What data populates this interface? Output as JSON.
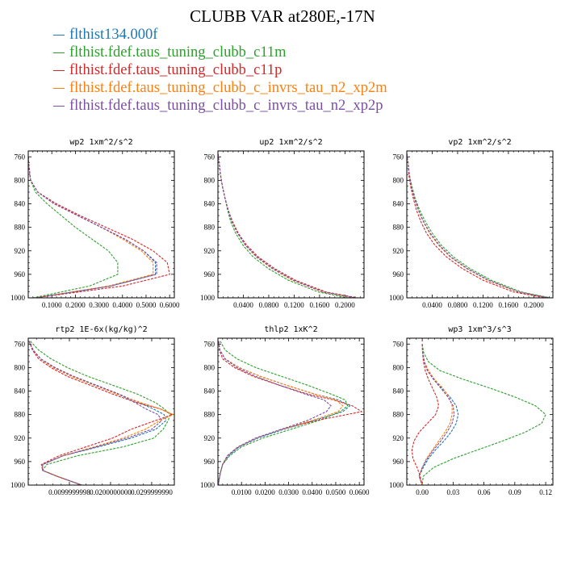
{
  "title": "CLUBB VAR at280E,-17N",
  "legend": [
    {
      "name": "flthist134.000f",
      "color": "#1f77b4"
    },
    {
      "name": "flthist.fdef.taus_tuning_clubb_c11m",
      "color": "#2ca02c"
    },
    {
      "name": "flthist.fdef.taus_tuning_clubb_c11p",
      "color": "#d62728"
    },
    {
      "name": "flthist.fdef.taus_tuning_clubb_c_invrs_tau_n2_xp2m",
      "color": "#ff7f0e"
    },
    {
      "name": "flthist.fdef.taus_tuning_clubb_c_invrs_tau_n2_xp2p",
      "color": "#7b4ea3"
    }
  ],
  "chart_data": [
    {
      "type": "line",
      "title": "wp2  1xm^2/s^2",
      "xlim": [
        0,
        0.62
      ],
      "ylim": [
        1000,
        750
      ],
      "y_reversed": true,
      "xticks": [
        0.1,
        0.2,
        0.3,
        0.4,
        0.5,
        0.6
      ],
      "xtick_labels": [
        "0.1000",
        "0.2000",
        "0.3000",
        "0.4000",
        "0.5000",
        "0.6000"
      ],
      "yticks": [
        760,
        800,
        840,
        880,
        920,
        960,
        1000
      ],
      "ytick_labels": [
        "760",
        "800",
        "840",
        "880",
        "920",
        "960",
        "1000"
      ],
      "y": [
        760,
        780,
        800,
        820,
        840,
        860,
        880,
        900,
        920,
        940,
        960,
        980,
        1000
      ],
      "series": [
        {
          "name": "flthist134.000f",
          "x": [
            0.0,
            0.004,
            0.01,
            0.04,
            0.11,
            0.21,
            0.31,
            0.41,
            0.49,
            0.54,
            0.54,
            0.35,
            0.03
          ]
        },
        {
          "name": "flthist.fdef.taus_tuning_clubb_c11m",
          "x": [
            0.0,
            0.004,
            0.01,
            0.03,
            0.08,
            0.14,
            0.2,
            0.27,
            0.34,
            0.38,
            0.38,
            0.26,
            0.02
          ]
        },
        {
          "name": "flthist.fdef.taus_tuning_clubb_c11p",
          "x": [
            0.0,
            0.004,
            0.01,
            0.04,
            0.12,
            0.22,
            0.33,
            0.44,
            0.53,
            0.59,
            0.6,
            0.4,
            0.03
          ]
        },
        {
          "name": "flthist.fdef.taus_tuning_clubb_c_invrs_tau_n2_xp2m",
          "x": [
            0.0,
            0.004,
            0.01,
            0.04,
            0.11,
            0.21,
            0.31,
            0.4,
            0.48,
            0.53,
            0.53,
            0.34,
            0.03
          ]
        },
        {
          "name": "flthist.fdef.taus_tuning_clubb_c_invrs_tau_n2_xp2p",
          "x": [
            0.0,
            0.004,
            0.01,
            0.04,
            0.11,
            0.21,
            0.31,
            0.41,
            0.49,
            0.545,
            0.545,
            0.35,
            0.03
          ]
        }
      ]
    },
    {
      "type": "line",
      "title": "up2  1xm^2/s^2",
      "xlim": [
        0,
        0.23
      ],
      "ylim": [
        1000,
        750
      ],
      "y_reversed": true,
      "xticks": [
        0.04,
        0.08,
        0.12,
        0.16,
        0.2
      ],
      "xtick_labels": [
        "0.0400",
        "0.0800",
        "0.1200",
        "0.1600",
        "0.2000"
      ],
      "yticks": [
        760,
        800,
        840,
        880,
        920,
        960,
        1000
      ],
      "ytick_labels": [
        "760",
        "800",
        "840",
        "880",
        "920",
        "960",
        "1000"
      ],
      "y": [
        755,
        770,
        790,
        810,
        830,
        850,
        870,
        890,
        910,
        930,
        950,
        970,
        990,
        1000
      ],
      "series": [
        {
          "name": "flthist134.000f",
          "x": [
            0.0,
            0.002,
            0.004,
            0.007,
            0.011,
            0.016,
            0.022,
            0.031,
            0.043,
            0.06,
            0.085,
            0.118,
            0.165,
            0.215
          ]
        },
        {
          "name": "flthist.fdef.taus_tuning_clubb_c11m",
          "x": [
            0.0,
            0.002,
            0.004,
            0.007,
            0.011,
            0.015,
            0.02,
            0.028,
            0.039,
            0.055,
            0.079,
            0.111,
            0.158,
            0.205
          ]
        },
        {
          "name": "flthist.fdef.taus_tuning_clubb_c11p",
          "x": [
            0.0,
            0.002,
            0.004,
            0.007,
            0.011,
            0.016,
            0.023,
            0.032,
            0.045,
            0.063,
            0.089,
            0.122,
            0.17,
            0.22
          ]
        },
        {
          "name": "flthist.fdef.taus_tuning_clubb_c_invrs_tau_n2_xp2m",
          "x": [
            0.0,
            0.002,
            0.004,
            0.007,
            0.011,
            0.016,
            0.022,
            0.031,
            0.043,
            0.06,
            0.085,
            0.117,
            0.165,
            0.214
          ]
        },
        {
          "name": "flthist.fdef.taus_tuning_clubb_c_invrs_tau_n2_xp2p",
          "x": [
            0.0,
            0.002,
            0.004,
            0.007,
            0.011,
            0.016,
            0.022,
            0.031,
            0.043,
            0.061,
            0.086,
            0.119,
            0.166,
            0.216
          ]
        }
      ]
    },
    {
      "type": "line",
      "title": "vp2  1xm^2/s^2",
      "xlim": [
        0,
        0.23
      ],
      "ylim": [
        1000,
        750
      ],
      "y_reversed": true,
      "xticks": [
        0.04,
        0.08,
        0.12,
        0.16,
        0.2
      ],
      "xtick_labels": [
        "0.0400",
        "0.0800",
        "0.1200",
        "0.1600",
        "0.2000"
      ],
      "yticks": [
        760,
        800,
        840,
        880,
        920,
        960,
        1000
      ],
      "ytick_labels": [
        "760",
        "800",
        "840",
        "880",
        "920",
        "960",
        "1000"
      ],
      "y": [
        755,
        770,
        790,
        810,
        830,
        850,
        870,
        890,
        910,
        930,
        950,
        970,
        990,
        1000
      ],
      "series": [
        {
          "name": "flthist134.000f",
          "x": [
            0.0,
            0.002,
            0.004,
            0.007,
            0.012,
            0.018,
            0.026,
            0.036,
            0.05,
            0.068,
            0.094,
            0.128,
            0.175,
            0.223
          ]
        },
        {
          "name": "flthist.fdef.taus_tuning_clubb_c11m",
          "x": [
            0.0,
            0.002,
            0.004,
            0.008,
            0.013,
            0.02,
            0.029,
            0.04,
            0.054,
            0.073,
            0.099,
            0.133,
            0.18,
            0.226
          ]
        },
        {
          "name": "flthist.fdef.taus_tuning_clubb_c11p",
          "x": [
            0.0,
            0.002,
            0.003,
            0.006,
            0.01,
            0.015,
            0.022,
            0.031,
            0.044,
            0.062,
            0.087,
            0.12,
            0.168,
            0.218
          ]
        },
        {
          "name": "flthist.fdef.taus_tuning_clubb_c_invrs_tau_n2_xp2m",
          "x": [
            0.0,
            0.002,
            0.004,
            0.007,
            0.012,
            0.018,
            0.026,
            0.036,
            0.05,
            0.068,
            0.094,
            0.127,
            0.175,
            0.222
          ]
        },
        {
          "name": "flthist.fdef.taus_tuning_clubb_c_invrs_tau_n2_xp2p",
          "x": [
            0.0,
            0.002,
            0.004,
            0.007,
            0.012,
            0.018,
            0.026,
            0.037,
            0.051,
            0.069,
            0.095,
            0.129,
            0.176,
            0.224
          ]
        }
      ]
    },
    {
      "type": "line",
      "title": "rtp2  1E-6x(kg/kg)^2",
      "xlim": [
        0,
        0.0355
      ],
      "ylim": [
        1000,
        750
      ],
      "y_reversed": true,
      "xticks": [
        0.01,
        0.02,
        0.03
      ],
      "xtick_labels": [
        "0.0099999998",
        "0.0200000000",
        "0.0299999990"
      ],
      "yticks": [
        760,
        800,
        840,
        880,
        920,
        960,
        1000
      ],
      "ytick_labels": [
        "760",
        "800",
        "840",
        "880",
        "920",
        "960",
        "1000"
      ],
      "y": [
        755,
        770,
        785,
        800,
        815,
        830,
        845,
        860,
        870,
        880,
        890,
        905,
        920,
        935,
        950,
        965,
        975,
        985,
        1000
      ],
      "series": [
        {
          "name": "flthist134.000f",
          "x": [
            0.0002,
            0.0012,
            0.003,
            0.0065,
            0.011,
            0.0165,
            0.022,
            0.027,
            0.0303,
            0.033,
            0.0335,
            0.031,
            0.025,
            0.017,
            0.0085,
            0.0035,
            0.0035,
            0.007,
            0.013
          ]
        },
        {
          "name": "flthist.fdef.taus_tuning_clubb_c11m",
          "x": [
            0.0005,
            0.0025,
            0.0055,
            0.0095,
            0.0145,
            0.0205,
            0.0265,
            0.031,
            0.033,
            0.0345,
            0.034,
            0.0328,
            0.0305,
            0.023,
            0.012,
            0.0045,
            0.0035,
            0.007,
            0.013
          ]
        },
        {
          "name": "flthist.fdef.taus_tuning_clubb_c11p",
          "x": [
            0.0002,
            0.001,
            0.0025,
            0.0055,
            0.0095,
            0.015,
            0.0205,
            0.0265,
            0.032,
            0.035,
            0.031,
            0.025,
            0.0205,
            0.014,
            0.0075,
            0.0032,
            0.0035,
            0.007,
            0.013
          ]
        },
        {
          "name": "flthist.fdef.taus_tuning_clubb_c_invrs_tau_n2_xp2m",
          "x": [
            0.0002,
            0.0012,
            0.003,
            0.006,
            0.0105,
            0.016,
            0.0215,
            0.0275,
            0.032,
            0.0352,
            0.032,
            0.0285,
            0.023,
            0.016,
            0.0085,
            0.0035,
            0.0035,
            0.007,
            0.013
          ]
        },
        {
          "name": "flthist.fdef.taus_tuning_clubb_c_invrs_tau_n2_xp2p",
          "x": [
            0.0002,
            0.0012,
            0.003,
            0.0065,
            0.011,
            0.0165,
            0.022,
            0.026,
            0.0285,
            0.0315,
            0.0325,
            0.03,
            0.024,
            0.0165,
            0.0085,
            0.0035,
            0.0035,
            0.007,
            0.013
          ]
        }
      ]
    },
    {
      "type": "line",
      "title": "thlp2  1xK^2",
      "xlim": [
        0,
        0.062
      ],
      "ylim": [
        1000,
        750
      ],
      "y_reversed": true,
      "xticks": [
        0.01,
        0.02,
        0.03,
        0.04,
        0.05,
        0.06
      ],
      "xtick_labels": [
        "0.0100",
        "0.0200",
        "0.0300",
        "0.0400",
        "0.0500",
        "0.0600"
      ],
      "yticks": [
        760,
        800,
        840,
        880,
        920,
        960,
        1000
      ],
      "ytick_labels": [
        "760",
        "800",
        "840",
        "880",
        "920",
        "960",
        "1000"
      ],
      "y": [
        755,
        770,
        785,
        800,
        815,
        830,
        845,
        855,
        865,
        875,
        890,
        905,
        920,
        935,
        950,
        965,
        980,
        995,
        1000
      ],
      "series": [
        {
          "name": "flthist134.000f",
          "x": [
            0.0003,
            0.0008,
            0.003,
            0.009,
            0.018,
            0.029,
            0.041,
            0.051,
            0.056,
            0.053,
            0.041,
            0.028,
            0.017,
            0.009,
            0.0045,
            0.002,
            0.001,
            0.0003,
            0.0002
          ]
        },
        {
          "name": "flthist.fdef.taus_tuning_clubb_c11m",
          "x": [
            0.001,
            0.003,
            0.008,
            0.016,
            0.027,
            0.038,
            0.048,
            0.054,
            0.055,
            0.052,
            0.043,
            0.031,
            0.019,
            0.01,
            0.005,
            0.002,
            0.001,
            0.0003,
            0.0002
          ]
        },
        {
          "name": "flthist.fdef.taus_tuning_clubb_c11p",
          "x": [
            0.0003,
            0.0006,
            0.002,
            0.007,
            0.015,
            0.026,
            0.038,
            0.049,
            0.057,
            0.061,
            0.042,
            0.027,
            0.016,
            0.0085,
            0.004,
            0.002,
            0.001,
            0.0003,
            0.0002
          ]
        },
        {
          "name": "flthist.fdef.taus_tuning_clubb_c_invrs_tau_n2_xp2m",
          "x": [
            0.0003,
            0.0008,
            0.003,
            0.009,
            0.018,
            0.029,
            0.041,
            0.05,
            0.053,
            0.051,
            0.04,
            0.027,
            0.016,
            0.0085,
            0.004,
            0.002,
            0.001,
            0.0003,
            0.0002
          ]
        },
        {
          "name": "flthist.fdef.taus_tuning_clubb_c_invrs_tau_n2_xp2p",
          "x": [
            0.0003,
            0.0008,
            0.003,
            0.008,
            0.016,
            0.026,
            0.037,
            0.045,
            0.048,
            0.046,
            0.038,
            0.027,
            0.016,
            0.0085,
            0.004,
            0.002,
            0.001,
            0.0003,
            0.0002
          ]
        }
      ]
    },
    {
      "type": "line",
      "title": "wp3  1xm^3/s^3",
      "xlim": [
        -0.015,
        0.127
      ],
      "ylim": [
        1000,
        750
      ],
      "y_reversed": true,
      "xticks": [
        0.0,
        0.03,
        0.06,
        0.09,
        0.12
      ],
      "xtick_labels": [
        "0.00",
        "0.03",
        "0.06",
        "0.09",
        "0.12"
      ],
      "yticks": [
        760,
        800,
        840,
        880,
        920,
        960,
        1000
      ],
      "ytick_labels": [
        "760",
        "800",
        "840",
        "880",
        "920",
        "960",
        "1000"
      ],
      "y": [
        760,
        775,
        790,
        805,
        820,
        835,
        850,
        865,
        880,
        895,
        910,
        925,
        940,
        955,
        970,
        985,
        1000
      ],
      "series": [
        {
          "name": "flthist134.000f",
          "x": [
            0.0,
            0.0005,
            0.002,
            0.005,
            0.011,
            0.019,
            0.027,
            0.033,
            0.035,
            0.033,
            0.028,
            0.021,
            0.013,
            0.006,
            0.001,
            -0.003,
            0.0
          ]
        },
        {
          "name": "flthist.fdef.taus_tuning_clubb_c11m",
          "x": [
            0.0,
            0.0015,
            0.006,
            0.017,
            0.04,
            0.066,
            0.09,
            0.11,
            0.12,
            0.116,
            0.1,
            0.078,
            0.054,
            0.03,
            0.011,
            0.001,
            0.0
          ]
        },
        {
          "name": "flthist.fdef.taus_tuning_clubb_c11p",
          "x": [
            0.0,
            0.0003,
            0.0012,
            0.003,
            0.006,
            0.01,
            0.014,
            0.016,
            0.013,
            0.005,
            -0.003,
            -0.008,
            -0.01,
            -0.009,
            -0.005,
            -0.002,
            0.0
          ]
        },
        {
          "name": "flthist.fdef.taus_tuning_clubb_c_invrs_tau_n2_xp2m",
          "x": [
            0.0,
            0.0005,
            0.002,
            0.006,
            0.012,
            0.02,
            0.026,
            0.029,
            0.029,
            0.027,
            0.022,
            0.016,
            0.01,
            0.004,
            0.0,
            -0.003,
            0.0
          ]
        },
        {
          "name": "flthist.fdef.taus_tuning_clubb_c_invrs_tau_n2_xp2p",
          "x": [
            0.0,
            0.0005,
            0.002,
            0.005,
            0.011,
            0.018,
            0.025,
            0.03,
            0.031,
            0.029,
            0.024,
            0.018,
            0.011,
            0.005,
            0.0,
            -0.003,
            0.0
          ]
        }
      ]
    }
  ]
}
